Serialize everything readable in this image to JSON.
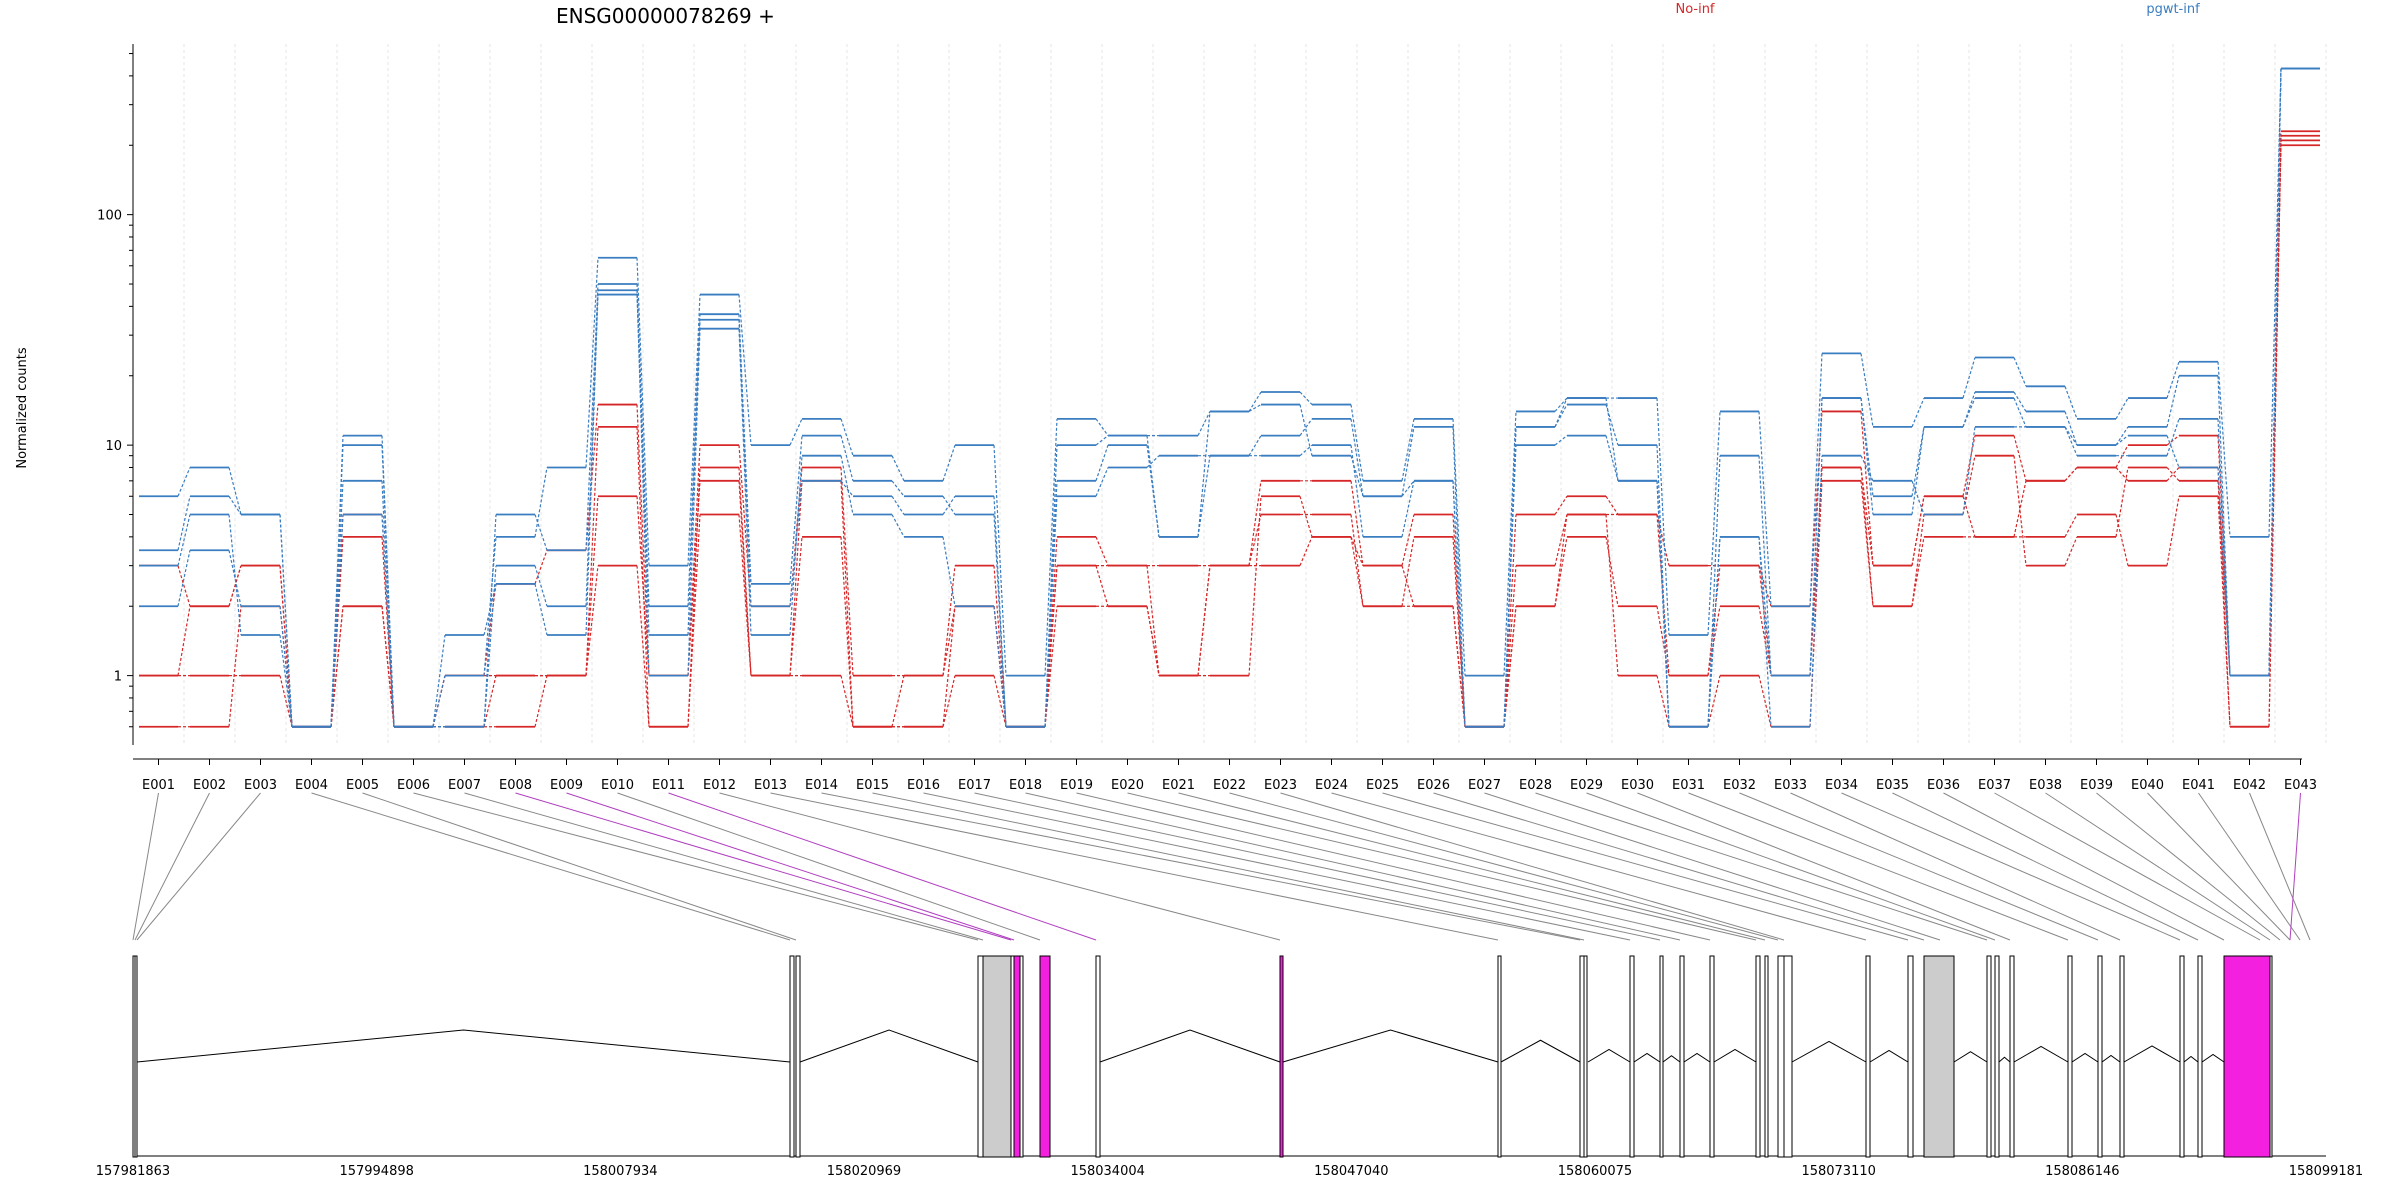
{
  "chart_data": {
    "type": "line",
    "title": "ENSG00000078269 +",
    "ylabel": "Normalized counts",
    "yscale": "log",
    "ylim": [
      0.5,
      550
    ],
    "y_ticks": [
      {
        "value": 1,
        "label": "1"
      },
      {
        "value": 10,
        "label": "10"
      },
      {
        "value": 100,
        "label": "100"
      }
    ],
    "categories": [
      "E001",
      "E002",
      "E003",
      "E004",
      "E005",
      "E006",
      "E007",
      "E008",
      "E009",
      "E010",
      "E011",
      "E012",
      "E013",
      "E014",
      "E015",
      "E016",
      "E017",
      "E018",
      "E019",
      "E020",
      "E021",
      "E022",
      "E023",
      "E024",
      "E025",
      "E026",
      "E027",
      "E028",
      "E029",
      "E030",
      "E031",
      "E032",
      "E033",
      "E034",
      "E035",
      "E036",
      "E037",
      "E038",
      "E039",
      "E040",
      "E041",
      "E042",
      "E043"
    ],
    "groups": [
      {
        "label": "No-inf",
        "color": "#d62728"
      },
      {
        "label": "pgwt-inf",
        "color": "#3a7dc0"
      }
    ],
    "series": [
      {
        "group": 0,
        "values": [
          3.0,
          2.0,
          3.0,
          0.6,
          4.0,
          0.6,
          1.0,
          2.5,
          3.5,
          15,
          1.0,
          10,
          2.0,
          8.0,
          1.0,
          1.0,
          3.0,
          0.6,
          4.0,
          3.0,
          3.0,
          3.0,
          7.0,
          7.0,
          3.0,
          5.0,
          0.6,
          5.0,
          6.0,
          5.0,
          3.0,
          3.0,
          2.0,
          14,
          3.0,
          6.0,
          11,
          7.0,
          8.0,
          10,
          11,
          1.0,
          220
        ]
      },
      {
        "group": 0,
        "values": [
          1.0,
          1.0,
          1.0,
          0.6,
          2.0,
          0.6,
          0.6,
          1.0,
          1.0,
          12,
          0.6,
          8.0,
          1.0,
          7.0,
          0.6,
          1.0,
          2.0,
          0.6,
          3.0,
          2.0,
          1.0,
          3.0,
          5.0,
          5.0,
          2.0,
          2.0,
          0.6,
          2.0,
          4.0,
          2.0,
          1.0,
          2.0,
          1.0,
          8.0,
          2.0,
          5.0,
          9.0,
          3.0,
          4.0,
          8.0,
          7.0,
          1.0,
          200
        ]
      },
      {
        "group": 0,
        "values": [
          0.6,
          0.6,
          2.0,
          0.6,
          5.0,
          0.6,
          1.0,
          1.0,
          1.0,
          6.0,
          1.0,
          7.0,
          1.0,
          4.0,
          0.6,
          0.6,
          1.0,
          0.6,
          2.0,
          2.0,
          1.0,
          1.0,
          6.0,
          4.0,
          2.0,
          4.0,
          0.6,
          3.0,
          5.0,
          1.0,
          0.6,
          1.0,
          0.6,
          7.0,
          2.0,
          4.0,
          4.0,
          4.0,
          5.0,
          3.0,
          6.0,
          0.6,
          230
        ]
      },
      {
        "group": 0,
        "values": [
          1.0,
          2.0,
          3.0,
          0.6,
          2.0,
          0.6,
          0.6,
          0.6,
          1.0,
          3.0,
          0.6,
          5.0,
          1.0,
          1.0,
          0.6,
          0.6,
          2.0,
          0.6,
          3.0,
          3.0,
          1.0,
          3.0,
          3.0,
          4.0,
          3.0,
          2.0,
          0.6,
          2.0,
          5.0,
          5.0,
          1.0,
          3.0,
          1.0,
          8.0,
          3.0,
          6.0,
          4.0,
          7.0,
          8.0,
          7.0,
          8.0,
          0.6,
          210
        ]
      },
      {
        "group": 1,
        "values": [
          6.0,
          8.0,
          5.0,
          0.6,
          11,
          0.6,
          1.0,
          4.0,
          8.0,
          65,
          3.0,
          45,
          10,
          13,
          9.0,
          7.0,
          10,
          1.0,
          13,
          11,
          11,
          14,
          17,
          15,
          7.0,
          13,
          1.0,
          14,
          16,
          16,
          1.5,
          14,
          2.0,
          25,
          12,
          16,
          24,
          18,
          13,
          16,
          23,
          4.0,
          430
        ]
      },
      {
        "group": 1,
        "values": [
          3.5,
          6.0,
          5.0,
          0.6,
          10,
          0.6,
          0.6,
          5.0,
          3.5,
          50,
          2.0,
          37,
          2.5,
          11,
          7.0,
          6.0,
          5.0,
          0.6,
          10,
          11,
          4.0,
          9.0,
          11,
          13,
          6.0,
          12,
          0.6,
          12,
          15,
          10,
          0.6,
          9.0,
          1.0,
          16,
          5.0,
          12,
          17,
          14,
          10,
          12,
          20,
          1.0,
          430
        ]
      },
      {
        "group": 1,
        "values": [
          2.0,
          3.5,
          2.0,
          0.6,
          7.0,
          0.6,
          0.6,
          3.0,
          2.0,
          47,
          1.0,
          32,
          1.5,
          9.0,
          5.0,
          4.0,
          2.0,
          0.6,
          6.0,
          8.0,
          9.0,
          9.0,
          9.0,
          10,
          4.0,
          7.0,
          0.6,
          10,
          11,
          7.0,
          0.6,
          4.0,
          0.6,
          9.0,
          7.0,
          5.0,
          12,
          12,
          9.0,
          9.0,
          13,
          1.0,
          430
        ]
      },
      {
        "group": 1,
        "values": [
          3.0,
          5.0,
          1.5,
          0.6,
          5.0,
          0.6,
          1.5,
          2.5,
          1.5,
          45,
          1.5,
          35,
          2.0,
          7.0,
          6.0,
          5.0,
          6.0,
          0.6,
          7.0,
          10,
          4.0,
          14,
          15,
          9.0,
          6.0,
          7.0,
          0.6,
          12,
          16,
          7.0,
          0.6,
          4.0,
          1.0,
          16,
          6.0,
          12,
          16,
          12,
          10,
          11,
          8.0,
          1.0,
          430
        ]
      }
    ]
  },
  "gene_model": {
    "coordinate_labels": [
      "157981863",
      "157994898",
      "158007934",
      "158020969",
      "158034004",
      "158047040",
      "158060075",
      "158073110",
      "158086146",
      "158099181"
    ]
  }
}
